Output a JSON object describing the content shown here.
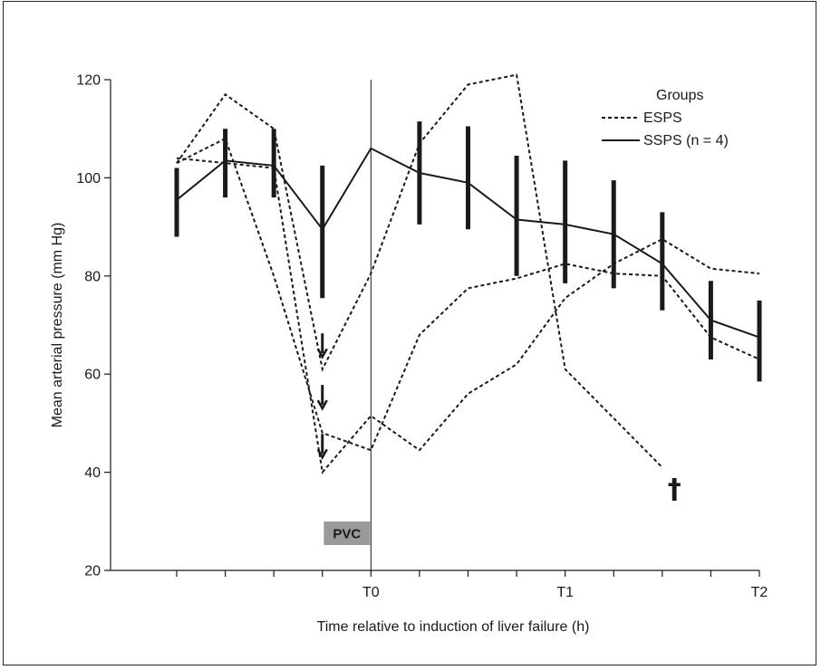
{
  "chart_data": {
    "type": "line",
    "title": "",
    "xlabel": "Time relative to induction of liver failure (h)",
    "ylabel": "Mean arterial pressure (mm Hg)",
    "ylim": [
      20,
      120
    ],
    "yticks": [
      "20",
      "40",
      "60",
      "80",
      "100",
      "120"
    ],
    "xlim": [
      -4,
      8
    ],
    "xtick_positions": [
      0,
      4,
      8
    ],
    "xtick_labels": [
      "T0",
      "T1",
      "T2"
    ],
    "minor_xticks": [
      -4,
      -3,
      -2,
      -1,
      0,
      1,
      2,
      3,
      4,
      5,
      6,
      7,
      8
    ],
    "legend": {
      "title": "Groups",
      "position": "top-right",
      "entries": [
        {
          "label": "ESPS",
          "style": "dashed"
        },
        {
          "label": "SSPS (n = 4)",
          "style": "solid"
        }
      ]
    },
    "ssps": {
      "name": "SSPS (n = 4)",
      "x": [
        -4,
        -3,
        -2,
        -1,
        0,
        1,
        2,
        3,
        4,
        5,
        6,
        7,
        8
      ],
      "mean": [
        95.5,
        103.5,
        102.5,
        89.5,
        106,
        101,
        99,
        91.5,
        90.5,
        88.5,
        82.5,
        71,
        67.5
      ],
      "error_low": [
        88,
        96,
        96,
        75.5,
        null,
        90.5,
        89.5,
        80,
        78.5,
        77.5,
        73,
        63,
        58.5
      ],
      "error_high": [
        102,
        110,
        110,
        102.5,
        null,
        111.5,
        110.5,
        104.5,
        103.5,
        99.5,
        93,
        79,
        75
      ]
    },
    "esps": [
      {
        "x": [
          -4,
          -3,
          -2,
          -1,
          0,
          1,
          2,
          3,
          4,
          5,
          6,
          7,
          8
        ],
        "y": [
          104,
          103,
          102,
          40,
          51.5,
          44.5,
          56,
          62,
          75.5,
          82.5,
          87.5,
          81.5,
          80.5
        ]
      },
      {
        "x": [
          -4,
          -3,
          -2,
          -1,
          0,
          1,
          2,
          3,
          4,
          5,
          6,
          7,
          8
        ],
        "y": [
          103,
          108,
          80,
          48,
          44.5,
          68,
          77.5,
          79.5,
          82.5,
          80.5,
          80,
          67.5,
          63
        ]
      },
      {
        "x": [
          -4,
          -3,
          -2,
          -1,
          0,
          1,
          2,
          3,
          4,
          5,
          6
        ],
        "y": [
          103,
          117,
          110,
          61,
          80.5,
          107,
          119,
          121,
          61,
          51,
          41
        ]
      }
    ],
    "annotations": {
      "pvc_label": "PVC",
      "death_marker": "†",
      "death_x": 6.25,
      "death_y": 37,
      "arrows_x": -1,
      "arrow_y_values": [
        63.5,
        53,
        43
      ]
    }
  }
}
